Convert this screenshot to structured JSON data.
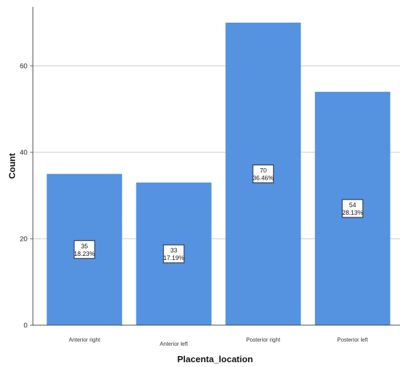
{
  "chart_data": {
    "type": "bar",
    "title": "",
    "xlabel": "Placenta_location",
    "ylabel": "Count",
    "categories": [
      "Anterior right",
      "Anterior left",
      "Posterior right",
      "Posterior left"
    ],
    "values": [
      35,
      33,
      70,
      54
    ],
    "percent_labels": [
      "18.23%",
      "17.19%",
      "36.46%",
      "28.13%"
    ],
    "ylim": [
      0,
      70
    ],
    "yticks": [
      0,
      20,
      40,
      60
    ],
    "grid": true,
    "legend": "none",
    "bar_color": "#5592e0"
  }
}
